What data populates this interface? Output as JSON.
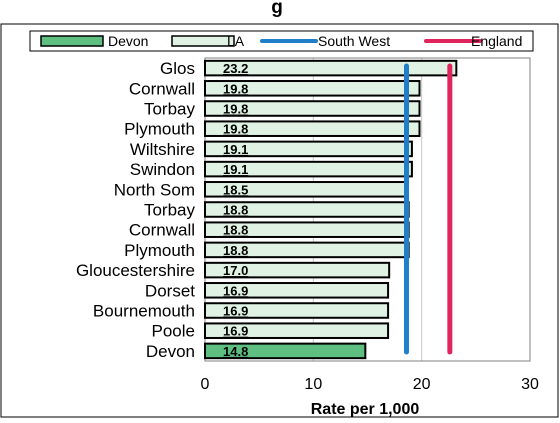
{
  "chart_data": {
    "type": "bar",
    "orientation": "horizontal",
    "title": "",
    "title_visible_fragment": "g",
    "xlabel": "Rate per 1,000",
    "ylabel": "",
    "xlim": [
      0,
      30
    ],
    "xticks": [
      0,
      10,
      20,
      30
    ],
    "grid": "vertical",
    "legend_position": "top",
    "categories": [
      "Glos",
      "Cornwall",
      "Torbay",
      "Plymouth",
      "Wiltshire",
      "Swindon",
      "North Som",
      "Torbay",
      "Cornwall",
      "Plymouth",
      "Gloucestershire",
      "Dorset",
      "Bournemouth",
      "Poole",
      "Devon"
    ],
    "values": [
      23.2,
      19.8,
      19.8,
      19.8,
      19.1,
      19.1,
      18.5,
      18.8,
      18.8,
      18.8,
      17.0,
      16.9,
      16.9,
      16.9,
      14.8
    ],
    "value_labels": [
      "23.2",
      "19.8",
      "19.8",
      "19.8",
      "19.1",
      "19.1",
      "18.5",
      "18.8",
      "18.8",
      "18.8",
      "17.0",
      "16.9",
      "16.9",
      "16.9",
      "14.8"
    ],
    "highlight": [
      false,
      false,
      false,
      false,
      false,
      false,
      false,
      false,
      false,
      false,
      false,
      false,
      false,
      false,
      true
    ],
    "reference_lines": [
      {
        "name": "South West",
        "value": 18.6,
        "color": "#1f7fc8"
      },
      {
        "name": "England",
        "value": 22.6,
        "color": "#e0245e"
      }
    ],
    "legend": [
      {
        "name": "Devon",
        "kind": "bar",
        "color": "#5fbf80"
      },
      {
        "name": "LA",
        "kind": "bar",
        "color": "#dff2e3"
      },
      {
        "name": "South West",
        "kind": "line",
        "color": "#1f7fc8"
      },
      {
        "name": "England",
        "kind": "line",
        "color": "#e0245e"
      }
    ],
    "colors": {
      "devon": "#5fbf80",
      "la": "#dff2e3",
      "south_west": "#1f7fc8",
      "england": "#e0245e"
    }
  }
}
